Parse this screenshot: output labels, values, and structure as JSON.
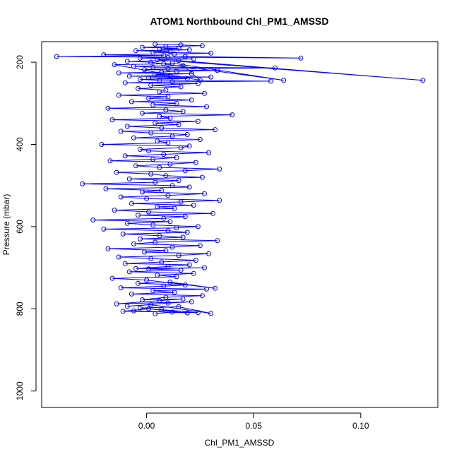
{
  "chart_data": {
    "type": "line",
    "title": "ATOM1 Northbound Chl_PM1_AMSSD",
    "xlabel": "Chl_PM1_AMSSD",
    "ylabel": "Pressure (mbar)",
    "xlim": [
      -0.049,
      0.136
    ],
    "ylim": [
      1040,
      150
    ],
    "y_reversed": true,
    "grid": false,
    "series": [
      {
        "color": "#0000ff",
        "marker": "open-circle",
        "x": [
          0.004,
          0.012,
          -0.006,
          0.019,
          0.001,
          -0.011,
          0.024,
          0.007,
          -0.003,
          0.015,
          0.03,
          0.002,
          -0.009,
          0.01,
          0.021,
          -0.014,
          0.006,
          0.017,
          -0.002,
          0.009,
          0.026,
          -0.007,
          0.013,
          0.003,
          0.028,
          -0.012,
          0.008,
          0.018,
          -0.004,
          0.011,
          0.032,
          0.0,
          -0.016,
          0.014,
          0.005,
          0.022,
          -0.008,
          0.016,
          0.001,
          0.027,
          -0.005,
          0.01,
          0.02,
          -0.01,
          0.007,
          0.023,
          0.002,
          -0.013,
          0.015,
          0.029,
          -0.001,
          0.009,
          -0.018,
          0.012,
          0.025,
          -0.006,
          0.004,
          0.033,
          -0.003,
          0.017,
          0.006,
          -0.011,
          0.019,
          0.01,
          -0.02,
          0.014,
          0.024,
          0.003,
          -0.009,
          0.011,
          -0.025,
          0.008,
          0.018,
          -0.004,
          0.031,
          0.001,
          -0.015,
          0.013,
          0.005,
          0.022,
          -0.007,
          0.016,
          0.034,
          0.0,
          -0.012,
          0.01,
          0.027,
          -0.002,
          0.007,
          -0.019,
          0.02,
          0.012,
          -0.03,
          0.004,
          0.015,
          -0.008,
          0.026,
          0.009,
          0.002,
          -0.014,
          0.018,
          0.034,
          0.006,
          -0.005,
          0.011,
          0.023,
          -0.017,
          0.003,
          0.014,
          -0.01,
          0.008,
          0.029,
          0.001,
          -0.003,
          0.016,
          0.02,
          -0.021,
          0.01,
          0.005,
          0.025,
          -0.006,
          0.012,
          0.019,
          0.002,
          -0.012,
          0.032,
          0.007,
          -0.009,
          0.015,
          0.004,
          0.024,
          -0.016,
          0.011,
          0.006,
          0.04,
          -0.002,
          0.017,
          0.009,
          -0.018,
          0.028,
          0.003,
          0.014,
          -0.007,
          0.021,
          0.001,
          0.01,
          -0.013,
          0.027,
          0.006
        ],
        "y": [
          812,
          808,
          805,
          810,
          800,
          806,
          809,
          802,
          798,
          795,
          811,
          790,
          794,
          786,
          783,
          788,
          780,
          776,
          778,
          772,
          768,
          764,
          760,
          756,
          752,
          749,
          745,
          742,
          738,
          735,
          750,
          730,
          726,
          722,
          718,
          714,
          710,
          706,
          703,
          700,
          702,
          697,
          693,
          690,
          686,
          682,
          678,
          674,
          670,
          666,
          662,
          658,
          654,
          650,
          646,
          642,
          638,
          634,
          630,
          626,
          622,
          618,
          614,
          610,
          606,
          603,
          600,
          596,
          592,
          588,
          584,
          580,
          576,
          572,
          568,
          564,
          560,
          556,
          552,
          548,
          544,
          540,
          536,
          532,
          528,
          524,
          520,
          516,
          512,
          508,
          504,
          500,
          496,
          492,
          488,
          484,
          480,
          476,
          472,
          468,
          464,
          460,
          456,
          452,
          448,
          444,
          440,
          436,
          432,
          428,
          424,
          420,
          416,
          412,
          408,
          404,
          400,
          396,
          392,
          388,
          384,
          380,
          376,
          372,
          368,
          364,
          360,
          356,
          352,
          348,
          344,
          340,
          336,
          332,
          328,
          324,
          320,
          316,
          312,
          308,
          304,
          300,
          296,
          292,
          288,
          284,
          280,
          276,
          272
        ]
      },
      {
        "color": "#0000ff",
        "marker": "open-circle",
        "x": [
          0.009,
          -0.004,
          0.016,
          0.002,
          0.024,
          -0.01,
          0.012,
          0.058,
          0.006,
          -0.003,
          0.019,
          0.001,
          0.03,
          -0.008,
          0.011,
          0.004,
          0.021,
          -0.013,
          0.007,
          0.014,
          0.033,
          -0.001,
          0.01,
          0.06,
          0.003,
          -0.006,
          0.017,
          0.025,
          -0.015,
          0.008,
          0.012,
          0.064,
          0.002,
          -0.009,
          0.015,
          0.129,
          0.005,
          0.022,
          -0.003,
          0.01,
          0.018,
          0.072,
          -0.042,
          0.008,
          -0.02,
          0.013,
          0.03,
          0.003,
          0.011,
          -0.005,
          0.02,
          0.006,
          0.015,
          -0.002,
          0.009,
          0.026,
          0.016,
          0.004
        ],
        "y": [
          268,
          264,
          260,
          256,
          252,
          250,
          248,
          246,
          244,
          242,
          240,
          238,
          236,
          234,
          232,
          230,
          228,
          226,
          224,
          222,
          220,
          218,
          216,
          214,
          212,
          210,
          208,
          244,
          206,
          204,
          202,
          244,
          200,
          198,
          196,
          244,
          194,
          192,
          190,
          188,
          186,
          190,
          186,
          184,
          182,
          180,
          178,
          176,
          174,
          172,
          170,
          168,
          166,
          164,
          162,
          160,
          158,
          156
        ]
      }
    ],
    "x_ticks": [
      {
        "value": 0.0,
        "label": "0.00"
      },
      {
        "value": 0.05,
        "label": "0.05"
      },
      {
        "value": 0.1,
        "label": "0.10"
      }
    ],
    "y_ticks": [
      {
        "value": 200,
        "label": "200"
      },
      {
        "value": 400,
        "label": "400"
      },
      {
        "value": 600,
        "label": "600"
      },
      {
        "value": 800,
        "label": "800"
      },
      {
        "value": 1000,
        "label": "1000"
      }
    ]
  }
}
